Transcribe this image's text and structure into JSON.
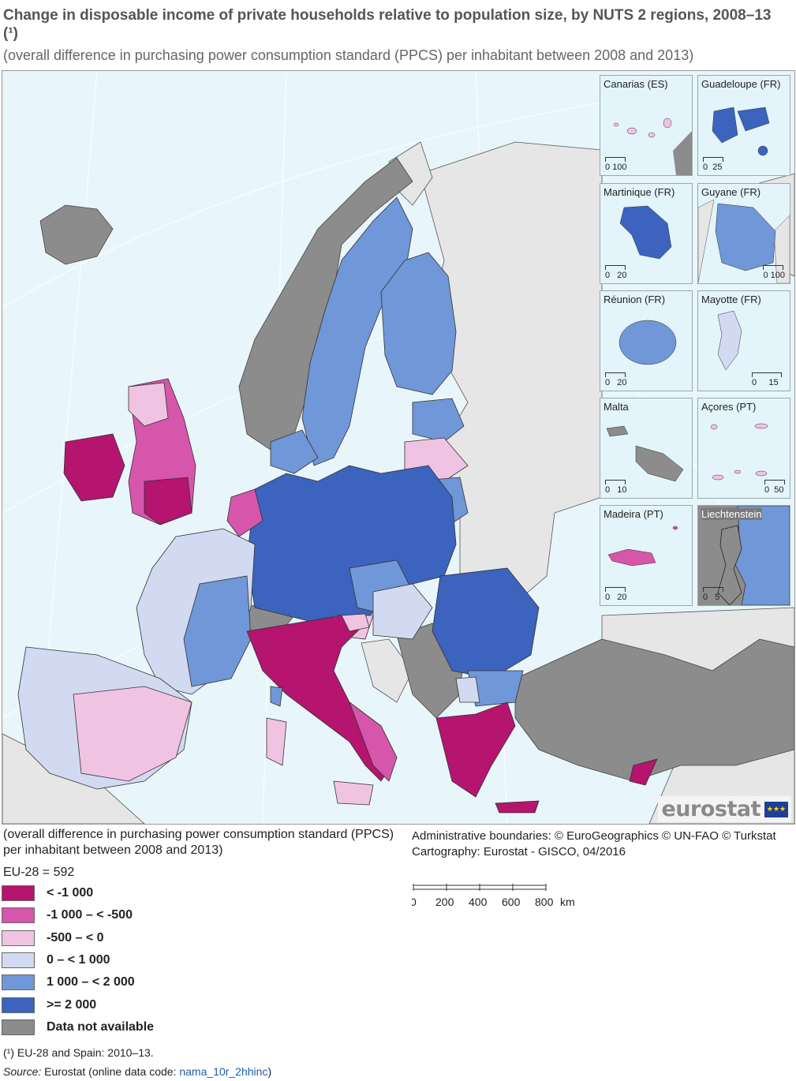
{
  "title": "Change in disposable income of private households relative to population size, by NUTS 2 regions, 2008–13 (¹)",
  "subtitle": "(overall difference in purchasing power consumption standard (PPCS) per inhabitant between 2008 and 2013)",
  "legend_note": "(overall difference in purchasing power consumption standard (PPCS) per inhabitant between 2008 and 2013)",
  "eu28": "EU-28 = 592",
  "legend": [
    {
      "label": "< -1 000",
      "color": "#b5146f"
    },
    {
      "label": "-1 000 – < -500",
      "color": "#d656ab"
    },
    {
      "label": "-500 – < 0",
      "color": "#f1c3e3"
    },
    {
      "label": "0 – < 1 000",
      "color": "#d2daf1"
    },
    {
      "label": "1 000 – < 2 000",
      "color": "#7097d7"
    },
    {
      "label": ">= 2 000",
      "color": "#3c63bd"
    },
    {
      "label": "Data not available",
      "color": "#8c8c8c"
    }
  ],
  "credits": {
    "line1": "Administrative boundaries: © EuroGeographics © UN-FAO © Turkstat",
    "line2": "Cartography: Eurostat - GISCO, 04/2016"
  },
  "scale_bar": {
    "ticks": [
      "0",
      "200",
      "400",
      "600",
      "800"
    ],
    "unit": "km"
  },
  "insets": [
    {
      "name": "Canarias (ES)",
      "scale": [
        "0",
        "100"
      ]
    },
    {
      "name": "Guadeloupe (FR)",
      "scale": [
        "0",
        "25"
      ]
    },
    {
      "name": "Martinique (FR)",
      "scale": [
        "0",
        "20"
      ]
    },
    {
      "name": "Guyane (FR)",
      "scale": [
        "0",
        "100"
      ]
    },
    {
      "name": "Réunion (FR)",
      "scale": [
        "0",
        "20"
      ]
    },
    {
      "name": "Mayotte (FR)",
      "scale": [
        "0",
        "15"
      ]
    },
    {
      "name": "Malta",
      "scale": [
        "0",
        "10"
      ]
    },
    {
      "name": "Açores (PT)",
      "scale": [
        "0",
        "50"
      ]
    },
    {
      "name": "Madeira (PT)",
      "scale": [
        "0",
        "20"
      ]
    },
    {
      "name": "Liechtenstein",
      "scale": [
        "0",
        "5"
      ]
    }
  ],
  "brand": "eurostat",
  "footnote": "(¹) EU-28 and Spain: 2010–13.",
  "source": {
    "label": "Source:",
    "text": " Eurostat (online data code: ",
    "code": "nama_10r_2hhinc",
    "close": ")"
  },
  "colors": {
    "sea": "#e8f6fb",
    "non_eu": "#e6e6e6"
  }
}
